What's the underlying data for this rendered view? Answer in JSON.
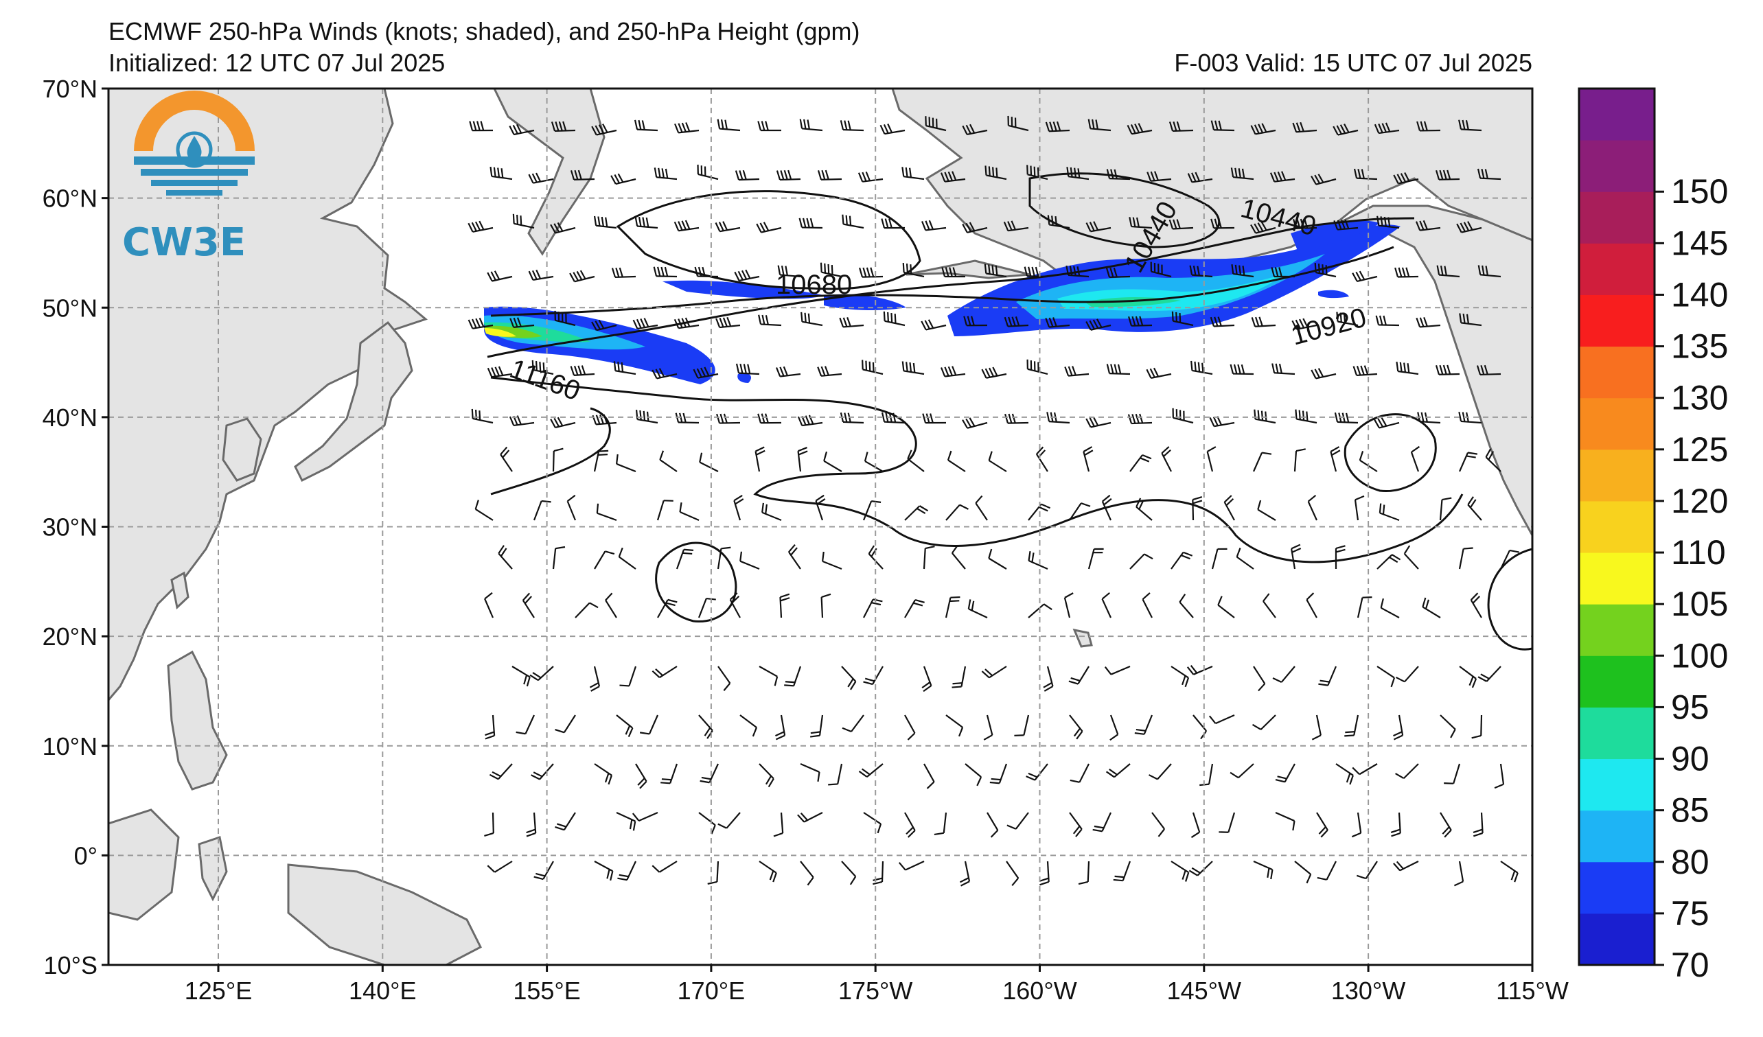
{
  "header": {
    "title": "ECMWF 250-hPa Winds (knots; shaded), and 250-hPa Height (gpm)",
    "initialized": "Initialized: 12 UTC 07 Jul 2025",
    "forecast_valid": "F-003  Valid: 15 UTC 07 Jul 2025"
  },
  "logo": {
    "text": "CW3E",
    "colors": {
      "orange": "#f3962d",
      "blue": "#2f8fbd"
    }
  },
  "map": {
    "lat_ticks": [
      "70°N",
      "60°N",
      "50°N",
      "40°N",
      "30°N",
      "20°N",
      "10°N",
      "0°",
      "10°S"
    ],
    "lon_ticks": [
      "125°E",
      "140°E",
      "155°E",
      "170°E",
      "175°W",
      "160°W",
      "145°W",
      "130°W",
      "115°W"
    ],
    "contour_labels": [
      {
        "text": "10680"
      },
      {
        "text": "10440"
      },
      {
        "text": "10440"
      },
      {
        "text": "10920"
      },
      {
        "text": "11160"
      }
    ],
    "colors": {
      "land": "#e4e4e4",
      "coast": "#6a6a6a",
      "grid": "#9a9a9a",
      "contour": "#111111"
    }
  },
  "colorbar": {
    "tick_labels": [
      "70",
      "75",
      "80",
      "85",
      "90",
      "95",
      "100",
      "105",
      "110",
      "120",
      "125",
      "130",
      "135",
      "140",
      "145",
      "150"
    ],
    "colors": [
      "#1a1fd0",
      "#1a3cf5",
      "#1eb4f5",
      "#1ee8f0",
      "#1edc9c",
      "#1ec11e",
      "#74d21e",
      "#f8f81e",
      "#f8d21e",
      "#f8b01e",
      "#f88a1e",
      "#f87020",
      "#f81e1e",
      "#d01e3c",
      "#a81e5a",
      "#8c1e78",
      "#781e8c"
    ]
  }
}
